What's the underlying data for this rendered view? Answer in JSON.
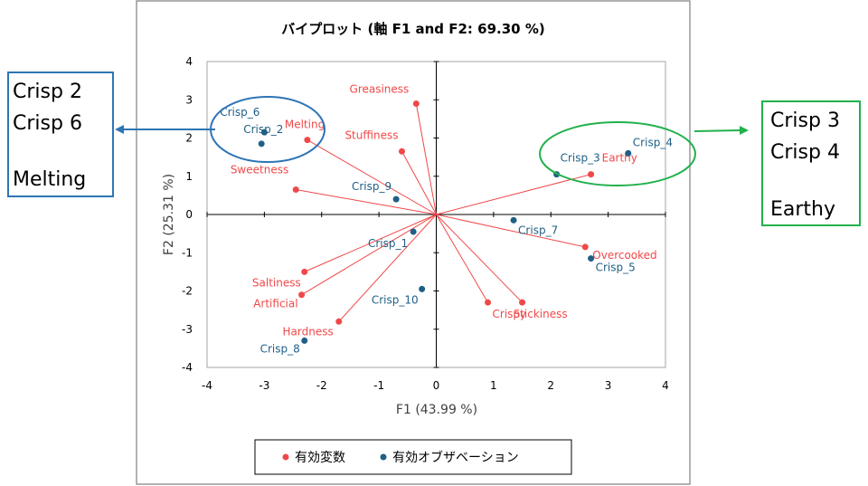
{
  "chart_data": {
    "type": "scatter",
    "subtype": "biplot",
    "title": "バイプロット (軸 F1 and F2: 69.30 %)",
    "xlabel": "F1 (43.99 %)",
    "ylabel": "F2 (25.31 %)",
    "xlim": [
      -4,
      4
    ],
    "ylim": [
      -4,
      4
    ],
    "xticks": [
      "-4",
      "-3",
      "-2",
      "-1",
      "0",
      "1",
      "2",
      "3",
      "4"
    ],
    "yticks": [
      "-4",
      "-3",
      "-2",
      "-1",
      "0",
      "1",
      "2",
      "3",
      "4"
    ],
    "grid": false,
    "legend_position": "bottom",
    "series": [
      {
        "name": "有効変数",
        "color": "#f04848",
        "marker": "circle",
        "vectors_from_origin": true,
        "points": [
          {
            "label": "Greasiness",
            "x": -0.35,
            "y": 2.9
          },
          {
            "label": "Stuffiness",
            "x": -0.6,
            "y": 1.65
          },
          {
            "label": "Melting",
            "x": -2.25,
            "y": 1.95
          },
          {
            "label": "Sweetness",
            "x": -2.45,
            "y": 0.65
          },
          {
            "label": "Earthy",
            "x": 2.7,
            "y": 1.05
          },
          {
            "label": "Overcooked",
            "x": 2.6,
            "y": -0.85
          },
          {
            "label": "Stickiness",
            "x": 1.5,
            "y": -2.3
          },
          {
            "label": "Crispy",
            "x": 0.9,
            "y": -2.3
          },
          {
            "label": "Saltiness",
            "x": -2.3,
            "y": -1.5
          },
          {
            "label": "Artificial",
            "x": -2.35,
            "y": -2.1
          },
          {
            "label": "Hardness",
            "x": -1.7,
            "y": -2.8
          }
        ]
      },
      {
        "name": "有効オブザベーション",
        "color": "#1f5f86",
        "marker": "circle",
        "points": [
          {
            "label": "Crisp_6",
            "x": -3.0,
            "y": 2.15
          },
          {
            "label": "Crisp_2",
            "x": -3.05,
            "y": 1.85
          },
          {
            "label": "Crisp_9",
            "x": -0.7,
            "y": 0.4
          },
          {
            "label": "Crisp_1",
            "x": -0.4,
            "y": -0.45
          },
          {
            "label": "Crisp_10",
            "x": -0.25,
            "y": -1.95
          },
          {
            "label": "Crisp_8",
            "x": -2.3,
            "y": -3.3
          },
          {
            "label": "Crisp_3",
            "x": 2.1,
            "y": 1.05
          },
          {
            "label": "Crisp_4",
            "x": 3.35,
            "y": 1.6
          },
          {
            "label": "Crisp_7",
            "x": 1.35,
            "y": -0.15
          },
          {
            "label": "Crisp_5",
            "x": 2.7,
            "y": -1.15
          }
        ]
      }
    ]
  },
  "callouts": [
    {
      "side": "left",
      "color": "#2e75b6",
      "lines": [
        "Crisp 2",
        "Crisp 6",
        "",
        "Melting"
      ]
    },
    {
      "side": "right",
      "color": "#22b14c",
      "lines": [
        "Crisp 3",
        "Crisp 4",
        "",
        "Earthy"
      ]
    }
  ]
}
